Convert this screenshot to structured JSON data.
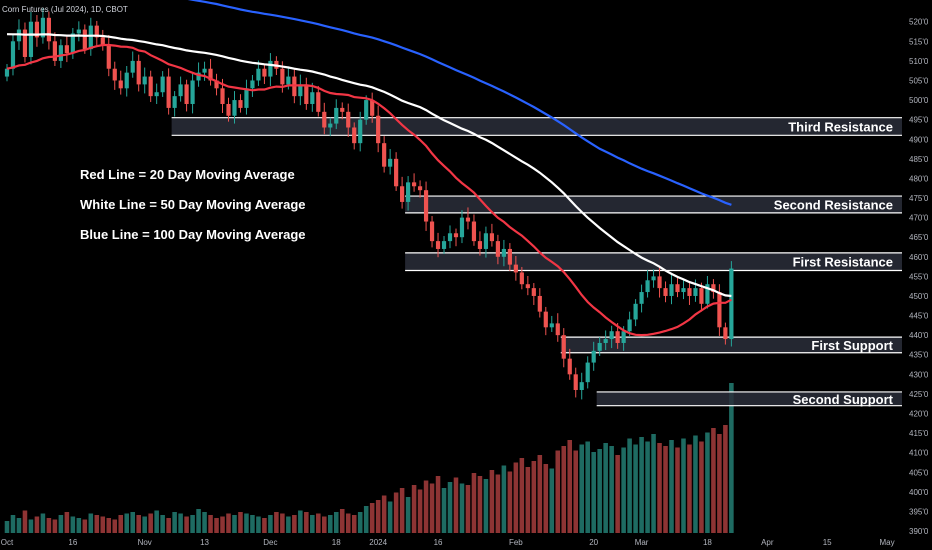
{
  "header": {
    "title": "Corn Futures (Jul 2024), 1D, CBOT"
  },
  "legend_text": [
    "Red Line = 20 Day Moving Average",
    "White Line = 50 Day Moving Average",
    "Blue Line = 100 Day Moving Average"
  ],
  "colors": {
    "background": "#000000",
    "up": "#26a69a",
    "down": "#ef5350",
    "vol_up": "#1e6b62",
    "vol_down": "#8e3434",
    "ma20": "#f23645",
    "ma50": "#ffffff",
    "ma100": "#2962ff",
    "zone_fill": "#2a2e39",
    "zone_edge": "#ffffff"
  },
  "chart_data": {
    "type": "candlestick",
    "title": "Corn Futures (Jul 2024), 1D, CBOT",
    "y_axis": {
      "min": 3895,
      "max": 5235,
      "ticks": [
        5200,
        5150,
        5100,
        5050,
        5000,
        4950,
        4900,
        4850,
        4800,
        4750,
        4700,
        4650,
        4600,
        4550,
        4500,
        4450,
        4400,
        4350,
        4300,
        4250,
        4200,
        4150,
        4100,
        4050,
        4000,
        3950,
        3900
      ],
      "tick_labels": [
        "520'0",
        "515'0",
        "510'0",
        "505'0",
        "500'0",
        "495'0",
        "490'0",
        "485'0",
        "480'0",
        "475'0",
        "470'0",
        "465'0",
        "460'0",
        "455'0",
        "450'0",
        "445'0",
        "440'0",
        "435'0",
        "430'0",
        "425'0",
        "420'0",
        "415'0",
        "410'0",
        "405'0",
        "400'0",
        "395'0",
        "390'0"
      ]
    },
    "x_axis": {
      "labels": [
        "Oct",
        "16",
        "Nov",
        "13",
        "Dec",
        "18",
        "2024",
        "16",
        "Feb",
        "20",
        "Mar",
        "18",
        "Apr",
        "15",
        "May"
      ],
      "label_bar_index": [
        0,
        11,
        23,
        33,
        44,
        55,
        62,
        72,
        85,
        98,
        106,
        117,
        127,
        137,
        147
      ]
    },
    "zones": [
      {
        "name": "Third Resistance",
        "low": 4910,
        "high": 4955,
        "start_index": 28
      },
      {
        "name": "Second Resistance",
        "low": 4712,
        "high": 4755,
        "start_index": 67
      },
      {
        "name": "First Resistance",
        "low": 4565,
        "high": 4610,
        "start_index": 67
      },
      {
        "name": "First Support",
        "low": 4355,
        "high": 4395,
        "start_index": 93
      },
      {
        "name": "Second Support",
        "low": 4220,
        "high": 4255,
        "start_index": 99
      }
    ],
    "closes": [
      5080,
      5150,
      5180,
      5110,
      5200,
      5160,
      5210,
      5150,
      5100,
      5140,
      5120,
      5170,
      5180,
      5130,
      5190,
      5160,
      5140,
      5080,
      5050,
      5030,
      5070,
      5100,
      5040,
      5060,
      5010,
      5020,
      5060,
      4980,
      5010,
      5040,
      4990,
      5050,
      5070,
      5080,
      5050,
      5030,
      4990,
      4960,
      5000,
      4980,
      5030,
      5050,
      5080,
      5060,
      5100,
      5080,
      5040,
      5060,
      5010,
      5040,
      4990,
      5020,
      4970,
      4930,
      4940,
      4980,
      4970,
      4930,
      4890,
      4950,
      5000,
      4960,
      4890,
      4830,
      4850,
      4780,
      4740,
      4790,
      4780,
      4770,
      4690,
      4640,
      4620,
      4640,
      4660,
      4650,
      4700,
      4690,
      4640,
      4620,
      4660,
      4640,
      4600,
      4620,
      4580,
      4560,
      4530,
      4520,
      4500,
      4460,
      4420,
      4430,
      4400,
      4340,
      4300,
      4260,
      4280,
      4330,
      4360,
      4380,
      4390,
      4410,
      4380,
      4410,
      4440,
      4480,
      4510,
      4540,
      4550,
      4520,
      4500,
      4530,
      4510,
      4520,
      4500,
      4520,
      4480,
      4530,
      4510,
      4420,
      4390,
      4570
    ],
    "volume_scale_max": 100,
    "volumes": [
      8,
      12,
      10,
      15,
      9,
      11,
      13,
      10,
      9,
      12,
      14,
      11,
      10,
      9,
      13,
      12,
      11,
      10,
      9,
      12,
      13,
      14,
      12,
      11,
      13,
      15,
      12,
      10,
      14,
      13,
      11,
      12,
      16,
      14,
      12,
      10,
      11,
      13,
      12,
      14,
      13,
      12,
      11,
      10,
      12,
      14,
      13,
      11,
      12,
      15,
      14,
      12,
      13,
      11,
      12,
      14,
      16,
      13,
      12,
      14,
      18,
      20,
      22,
      25,
      21,
      27,
      30,
      24,
      32,
      29,
      35,
      33,
      38,
      30,
      34,
      37,
      33,
      32,
      40,
      38,
      36,
      42,
      39,
      45,
      41,
      47,
      50,
      44,
      48,
      52,
      46,
      43,
      55,
      58,
      62,
      55,
      59,
      61,
      54,
      56,
      60,
      58,
      52,
      57,
      63,
      59,
      64,
      61,
      66,
      60,
      58,
      62,
      57,
      63,
      59,
      65,
      61,
      67,
      70,
      66,
      72,
      100
    ]
  }
}
